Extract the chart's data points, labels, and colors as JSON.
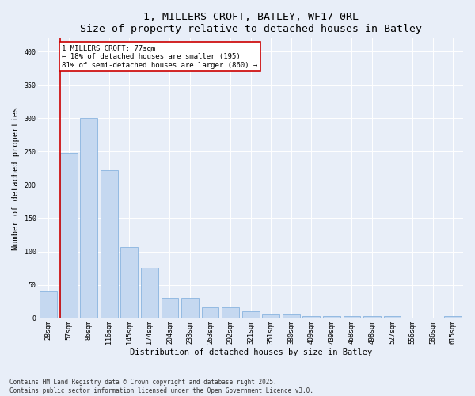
{
  "title": "1, MILLERS CROFT, BATLEY, WF17 0RL",
  "subtitle": "Size of property relative to detached houses in Batley",
  "xlabel": "Distribution of detached houses by size in Batley",
  "ylabel": "Number of detached properties",
  "categories": [
    "28sqm",
    "57sqm",
    "86sqm",
    "116sqm",
    "145sqm",
    "174sqm",
    "204sqm",
    "233sqm",
    "263sqm",
    "292sqm",
    "321sqm",
    "351sqm",
    "380sqm",
    "409sqm",
    "439sqm",
    "468sqm",
    "498sqm",
    "527sqm",
    "556sqm",
    "586sqm",
    "615sqm"
  ],
  "values": [
    40,
    248,
    300,
    222,
    107,
    76,
    30,
    30,
    16,
    16,
    10,
    5,
    5,
    3,
    3,
    3,
    3,
    3,
    1,
    1,
    3
  ],
  "bar_color": "#c5d8f0",
  "bar_edge_color": "#7aaadc",
  "vline_x_idx": 1,
  "vline_color": "#cc0000",
  "annotation_text": "1 MILLERS CROFT: 77sqm\n← 18% of detached houses are smaller (195)\n81% of semi-detached houses are larger (860) →",
  "annotation_box_color": "#ffffff",
  "annotation_box_edge": "#cc0000",
  "ylim": [
    0,
    420
  ],
  "yticks": [
    0,
    50,
    100,
    150,
    200,
    250,
    300,
    350,
    400
  ],
  "background_color": "#e8eef8",
  "footer_text": "Contains HM Land Registry data © Crown copyright and database right 2025.\nContains public sector information licensed under the Open Government Licence v3.0.",
  "title_fontsize": 9.5,
  "subtitle_fontsize": 8.5,
  "xlabel_fontsize": 7.5,
  "ylabel_fontsize": 7.5,
  "tick_fontsize": 6,
  "annotation_fontsize": 6.5,
  "footer_fontsize": 5.5
}
